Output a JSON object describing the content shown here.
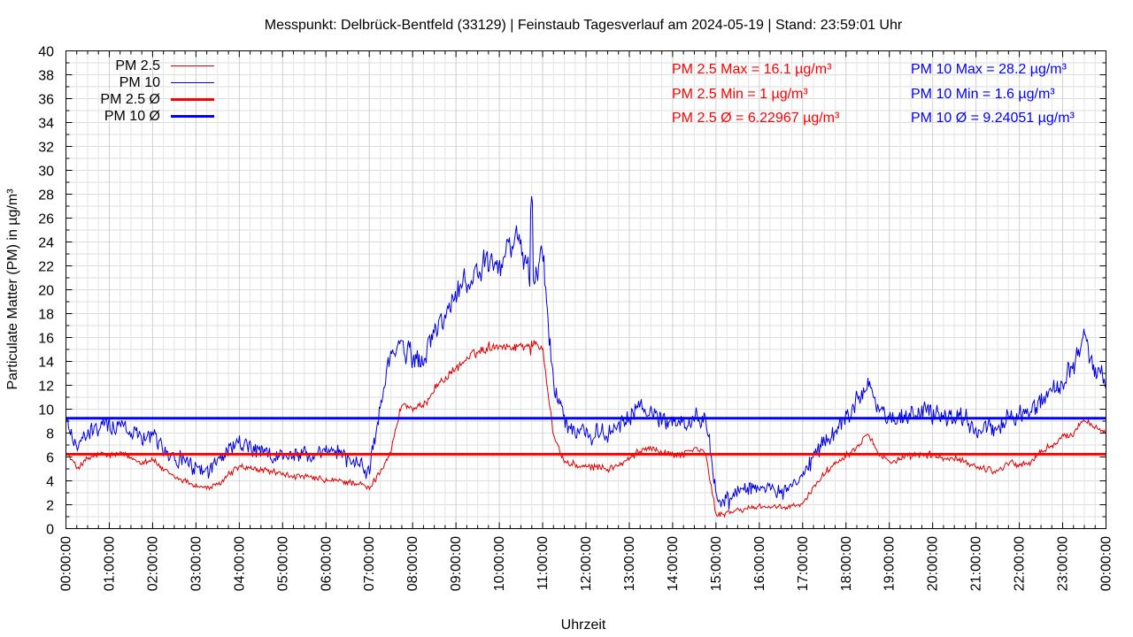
{
  "chart_data": {
    "type": "line",
    "title": "Messpunkt: Delbrück-Bentfeld (33129) | Feinstaub Tagesverlauf am 2024-05-19 | Stand: 23:59:01 Uhr",
    "xlabel": "Uhrzeit",
    "ylabel": "Particulate Matter (PM) in µg/m³",
    "ylim": [
      0,
      40
    ],
    "xlim": [
      "00:00:00",
      "24:00:00"
    ],
    "grid": true,
    "legend_position": "top-left",
    "y_ticks": [
      "0",
      "2",
      "4",
      "6",
      "8",
      "10",
      "12",
      "14",
      "16",
      "18",
      "20",
      "22",
      "24",
      "26",
      "28",
      "30",
      "32",
      "34",
      "36",
      "38",
      "40"
    ],
    "x_ticks": [
      "00:00:00",
      "01:00:00",
      "02:00:00",
      "03:00:00",
      "04:00:00",
      "05:00:00",
      "06:00:00",
      "07:00:00",
      "08:00:00",
      "09:00:00",
      "10:00:00",
      "11:00:00",
      "12:00:00",
      "13:00:00",
      "14:00:00",
      "15:00:00",
      "16:00:00",
      "17:00:00",
      "18:00:00",
      "19:00:00",
      "20:00:00",
      "21:00:00",
      "22:00:00",
      "23:00:00",
      "00:00:00"
    ],
    "series": [
      {
        "name": "PM 2.5",
        "color": "#e00000",
        "x_hours": [
          0,
          0.25,
          0.5,
          0.75,
          1,
          1.25,
          1.5,
          1.75,
          2,
          2.25,
          2.5,
          2.75,
          3,
          3.25,
          3.5,
          3.75,
          4,
          4.25,
          4.5,
          4.75,
          5,
          5.25,
          5.5,
          5.75,
          6,
          6.25,
          6.5,
          6.75,
          7,
          7.25,
          7.5,
          7.75,
          8,
          8.25,
          8.5,
          8.75,
          9,
          9.25,
          9.5,
          9.75,
          10,
          10.25,
          10.5,
          10.75,
          11,
          11.25,
          11.5,
          11.75,
          12,
          12.25,
          12.5,
          12.75,
          13,
          13.25,
          13.5,
          13.75,
          14,
          14.25,
          14.5,
          14.75,
          15,
          15.25,
          15.5,
          15.75,
          16,
          16.25,
          16.5,
          16.75,
          17,
          17.25,
          17.5,
          17.75,
          18,
          18.25,
          18.5,
          18.75,
          19,
          19.25,
          19.5,
          19.75,
          20,
          20.25,
          20.5,
          20.75,
          21,
          21.25,
          21.5,
          21.75,
          22,
          22.25,
          22.5,
          22.75,
          23,
          23.25,
          23.5,
          23.75,
          24
        ],
        "values": [
          6.4,
          5.1,
          5.8,
          6.2,
          6.1,
          6.3,
          5.9,
          5.6,
          5.8,
          4.9,
          4.3,
          4.0,
          3.6,
          3.4,
          3.6,
          4.5,
          5.2,
          5.0,
          4.9,
          4.8,
          4.5,
          4.4,
          4.3,
          4.2,
          4.0,
          4.0,
          3.9,
          3.8,
          3.3,
          4.8,
          6.5,
          10.5,
          10.0,
          10.2,
          11.8,
          12.6,
          13.4,
          14.2,
          14.8,
          15.2,
          15.4,
          15.2,
          15.3,
          15.5,
          15.2,
          7.8,
          5.6,
          5.3,
          5.1,
          5.2,
          5.0,
          5.3,
          5.8,
          6.5,
          6.9,
          6.4,
          6.2,
          6.3,
          6.7,
          6.4,
          1.2,
          1.3,
          1.5,
          1.7,
          1.9,
          1.8,
          1.7,
          1.9,
          2.0,
          3.5,
          4.6,
          5.5,
          6.2,
          6.8,
          8.2,
          6.3,
          5.6,
          5.8,
          6.0,
          6.2,
          6.1,
          5.9,
          5.8,
          5.6,
          5.2,
          5.0,
          4.8,
          5.6,
          5.3,
          5.5,
          6.4,
          7.0,
          7.6,
          8.0,
          9.2,
          8.6,
          7.9
        ],
        "noise": 0.35
      },
      {
        "name": "PM 10",
        "color": "#0000e0",
        "x_hours": [
          0,
          0.25,
          0.5,
          0.75,
          1,
          1.25,
          1.5,
          1.75,
          2,
          2.25,
          2.5,
          2.75,
          3,
          3.25,
          3.5,
          3.75,
          4,
          4.25,
          4.5,
          4.75,
          5,
          5.25,
          5.5,
          5.75,
          6,
          6.25,
          6.5,
          6.75,
          7,
          7.25,
          7.5,
          7.75,
          8,
          8.25,
          8.5,
          8.75,
          9,
          9.25,
          9.5,
          9.75,
          10,
          10.25,
          10.5,
          10.75,
          11,
          11.25,
          11.5,
          11.75,
          12,
          12.25,
          12.5,
          12.75,
          13,
          13.25,
          13.5,
          13.75,
          14,
          14.25,
          14.5,
          14.75,
          15,
          15.25,
          15.5,
          15.75,
          16,
          16.25,
          16.5,
          16.75,
          17,
          17.25,
          17.5,
          17.75,
          18,
          18.25,
          18.5,
          18.75,
          19,
          19.25,
          19.5,
          19.75,
          20,
          20.25,
          20.5,
          20.75,
          21,
          21.25,
          21.5,
          21.75,
          22,
          22.25,
          22.5,
          22.75,
          23,
          23.25,
          23.5,
          23.75,
          24
        ],
        "values": [
          9.0,
          7.0,
          7.8,
          8.5,
          8.7,
          8.6,
          8.2,
          7.9,
          8.1,
          6.8,
          6.0,
          5.5,
          5.0,
          4.9,
          5.5,
          6.6,
          7.2,
          6.8,
          6.3,
          6.0,
          6.1,
          6.2,
          6.3,
          6.0,
          6.2,
          6.5,
          5.9,
          5.3,
          5.0,
          10.0,
          14.8,
          15.2,
          14.3,
          14.0,
          16.5,
          17.8,
          19.5,
          20.8,
          21.6,
          22.0,
          21.6,
          23.8,
          24.0,
          20.0,
          23.0,
          12.2,
          9.2,
          8.2,
          8.2,
          8.0,
          7.8,
          8.5,
          9.2,
          10.2,
          9.8,
          9.1,
          9.0,
          8.6,
          9.2,
          9.6,
          2.8,
          2.4,
          3.2,
          3.5,
          3.4,
          3.1,
          3.0,
          3.4,
          4.2,
          6.0,
          7.2,
          8.0,
          9.4,
          10.8,
          12.5,
          10.0,
          9.2,
          9.1,
          9.6,
          9.8,
          9.7,
          9.5,
          9.3,
          9.4,
          8.2,
          8.6,
          8.0,
          9.2,
          9.5,
          9.8,
          10.5,
          11.5,
          12.5,
          13.8,
          15.8,
          13.2,
          12.2
        ],
        "noise": 0.9
      },
      {
        "name": "PM 2.5 Ø",
        "color": "#ff0000",
        "constant": 6.22967
      },
      {
        "name": "PM 10 Ø",
        "color": "#0000ff",
        "constant": 9.24051
      }
    ],
    "annotations": {
      "pm25": [
        "PM 2.5 Max = 16.1 µg/m³",
        "PM 2.5 Min = 1 µg/m³",
        "PM 2.5 Ø = 6.22967 µg/m³"
      ],
      "pm10": [
        "PM 10 Max = 28.2 µg/m³",
        "PM 10 Min = 1.6 µg/m³",
        "PM 10 Ø = 9.24051 µg/m³"
      ]
    },
    "peaks": {
      "pm25_max": {
        "hour": 10.75,
        "value": 16.1
      },
      "pm25_min": {
        "hour": 15.1,
        "value": 1.0
      },
      "pm10_max": {
        "hour": 10.75,
        "value": 28.2
      },
      "pm10_min": {
        "hour": 15.3,
        "value": 1.6
      }
    }
  }
}
